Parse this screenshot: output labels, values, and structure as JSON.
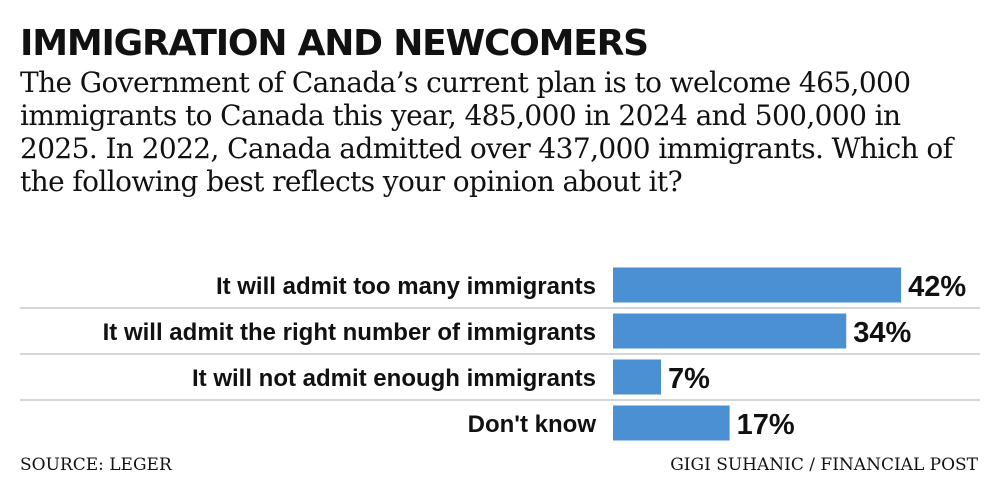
{
  "header": {
    "title": "IMMIGRATION AND NEWCOMERS",
    "question": "The Government of Canada’s current plan is to welcome 465,000 immigrants to Canada this year, 485,000 in 2024 and 500,000 in 2025. In 2022, Canada admitted over 437,000 immigrants. Which of the following best reflects your opinion about it?"
  },
  "chart_data": {
    "type": "bar",
    "orientation": "horizontal",
    "categories": [
      "It will admit too many immigrants",
      "It will admit the right number of immigrants",
      "It will not admit enough immigrants",
      "Don't know"
    ],
    "values": [
      42,
      34,
      7,
      17
    ],
    "value_labels": [
      "42%",
      "34%",
      "7%",
      "17%"
    ],
    "unit": "%",
    "bar_color": "#4a90d2",
    "separator_color": "#c8c8c8",
    "grid": false,
    "legend": "none"
  },
  "footer": {
    "source": "SOURCE: LEGER",
    "credit": "GIGI SUHANIC / FINANCIAL POST"
  }
}
